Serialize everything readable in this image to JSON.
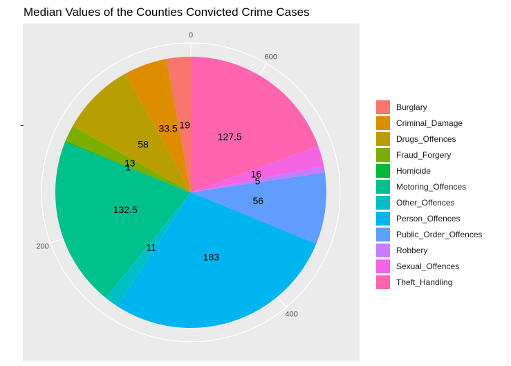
{
  "chart_data": {
    "type": "pie",
    "title": "Median Values of the Counties Convicted Crime Cases",
    "categories": [
      "Burglary",
      "Criminal_Damage",
      "Drugs_Offences",
      "Fraud_Forgery",
      "Homicide",
      "Motoring_Offences",
      "Other_Offences",
      "Person_Offences",
      "Public_Order_Offences",
      "Robbery",
      "Sexual_Offences",
      "Theft_Handling"
    ],
    "values": [
      19,
      33.5,
      58,
      13,
      1,
      132.5,
      11,
      183,
      56,
      5,
      16,
      127.5
    ],
    "value_labels": [
      "19",
      "33.5",
      "58",
      "13",
      "1",
      "132.5",
      "11",
      "183",
      "56",
      "5",
      "16",
      "127.5"
    ],
    "colors": [
      "#F8766D",
      "#DE8C00",
      "#B79F00",
      "#7CAE00",
      "#00BA38",
      "#00C08B",
      "#00BFC4",
      "#00B4F0",
      "#619CFF",
      "#C77CFF",
      "#F564E3",
      "#FF64B0"
    ],
    "radial_ticks": [
      "0",
      "200",
      "400",
      "600"
    ],
    "radial_tick_values": [
      0,
      200,
      400,
      600
    ],
    "direction": "counterclockwise",
    "grid": true,
    "legend_position": "right"
  }
}
